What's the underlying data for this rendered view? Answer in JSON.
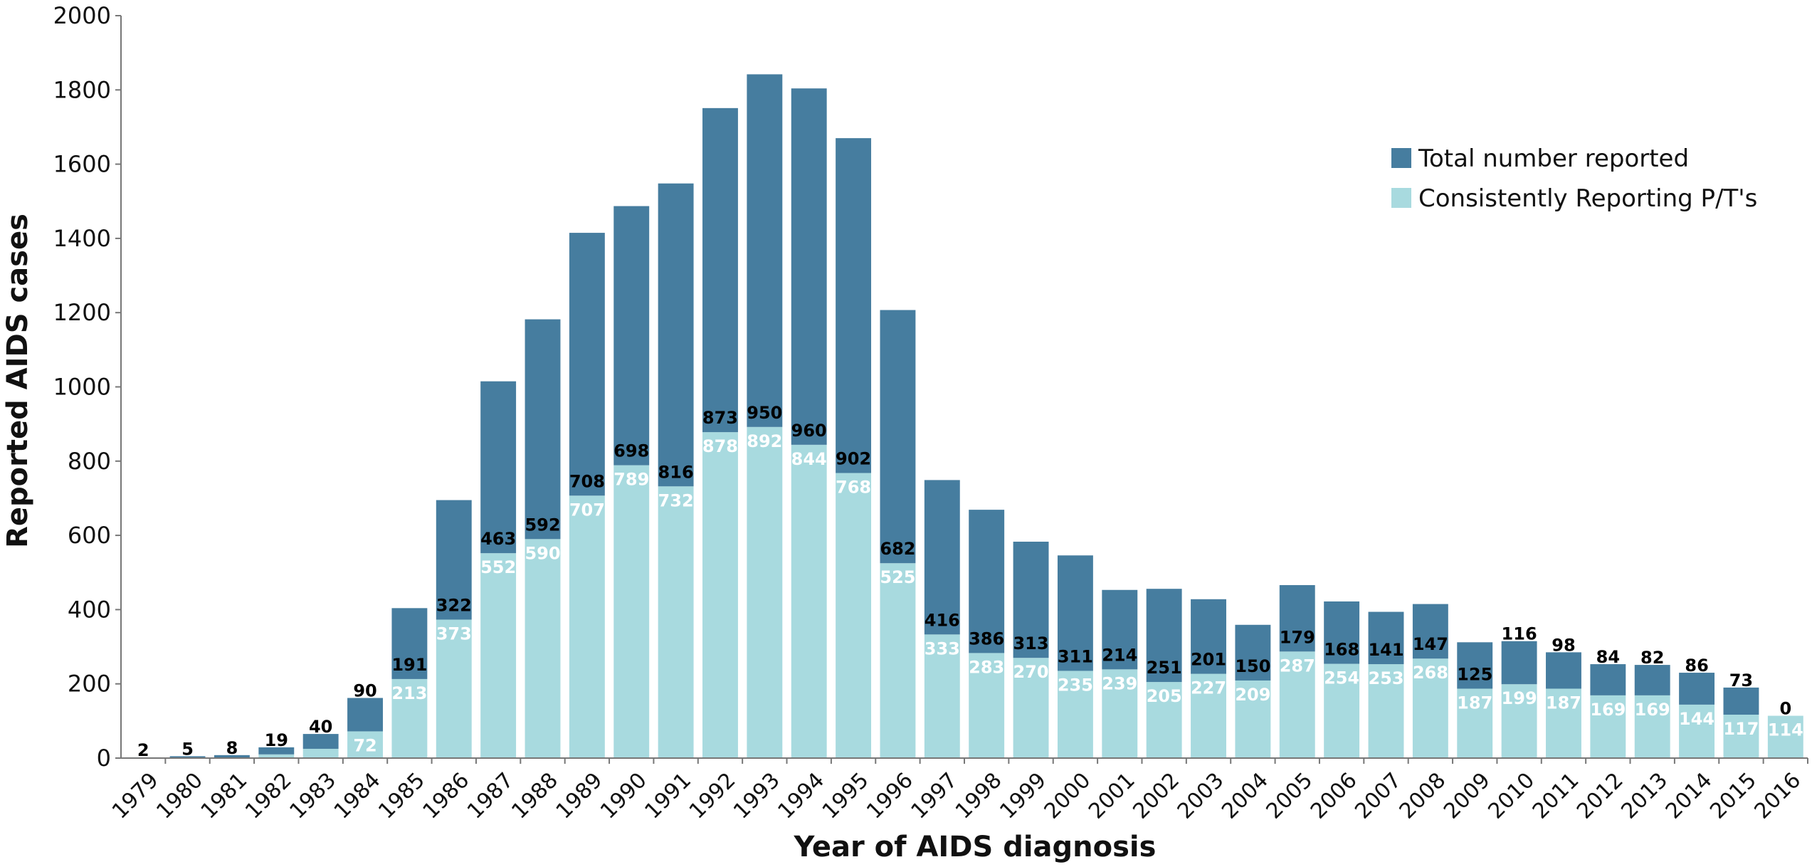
{
  "chart_data": {
    "type": "bar",
    "title": "",
    "xlabel": "Year of AIDS diagnosis",
    "ylabel": "Reported AIDS cases",
    "ylim": [
      0,
      2000
    ],
    "yticks": [
      0,
      200,
      400,
      600,
      800,
      1000,
      1200,
      1400,
      1600,
      1800,
      2000
    ],
    "legend_position": "top-right",
    "colors": {
      "extra": "#467d9f",
      "consistent": "#a8dadf"
    },
    "categories": [
      "1979",
      "1980",
      "1981",
      "1982",
      "1983",
      "1984",
      "1985",
      "1986",
      "1987",
      "1988",
      "1989",
      "1990",
      "1991",
      "1992",
      "1993",
      "1994",
      "1995",
      "1996",
      "1997",
      "1998",
      "1999",
      "2000",
      "2001",
      "2002",
      "2003",
      "2004",
      "2005",
      "2006",
      "2007",
      "2008",
      "2009",
      "2010",
      "2011",
      "2012",
      "2013",
      "2014",
      "2015",
      "2016"
    ],
    "series": [
      {
        "name": "Consistently Reporting P/T's",
        "values": [
          0,
          0,
          0,
          10,
          25,
          72,
          213,
          373,
          552,
          590,
          707,
          789,
          732,
          878,
          892,
          844,
          768,
          525,
          333,
          283,
          270,
          235,
          239,
          205,
          227,
          209,
          287,
          254,
          253,
          268,
          187,
          199,
          187,
          169,
          169,
          144,
          117,
          114
        ]
      },
      {
        "name": "Total number reported",
        "values": [
          2,
          5,
          8,
          19,
          40,
          90,
          191,
          322,
          463,
          592,
          708,
          698,
          816,
          873,
          950,
          960,
          902,
          682,
          416,
          386,
          313,
          311,
          214,
          251,
          201,
          150,
          179,
          168,
          141,
          147,
          125,
          116,
          98,
          84,
          82,
          86,
          73,
          0
        ]
      }
    ],
    "labels_consistent": [
      "",
      "",
      "",
      "",
      "",
      "72",
      "213",
      "373",
      "552",
      "590",
      "707",
      "789",
      "732",
      "878",
      "892",
      "844",
      "768",
      "525",
      "333",
      "283",
      "270",
      "235",
      "239",
      "205",
      "227",
      "209",
      "287",
      "254",
      "253",
      "268",
      "187",
      "199",
      "187",
      "169",
      "169",
      "144",
      "117",
      "114"
    ],
    "labels_total": [
      "2",
      "5",
      "8",
      "19",
      "40",
      "90",
      "191",
      "322",
      "463",
      "592",
      "708",
      "698",
      "816",
      "873",
      "950",
      "960",
      "902",
      "682",
      "416",
      "386",
      "313",
      "311",
      "214",
      "251",
      "201",
      "150",
      "179",
      "168",
      "141",
      "147",
      "125",
      "116",
      "98",
      "84",
      "82",
      "86",
      "73",
      "0"
    ]
  }
}
